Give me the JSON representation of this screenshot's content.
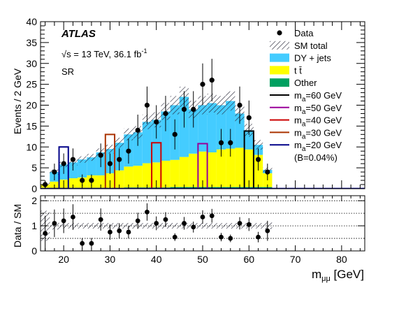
{
  "chart_data": [
    {
      "type": "bar",
      "panel": "main",
      "title": "",
      "annotations": {
        "experiment": "ATLAS",
        "energy": "√s = 13 TeV,   36.1  fb",
        "lumi_exp": "-1",
        "region": "SR",
        "mass_label": "m",
        "mass_sub": "a",
        "signal_note": "(B=0.04%)"
      },
      "xlabel": "m",
      "xlabel_sub": "μμ",
      "xlabel_unit": " [GeV]",
      "ylabel": "Events / 2 GeV",
      "xlim": [
        15,
        85
      ],
      "ylim": [
        0,
        40
      ],
      "x_ticks": [
        20,
        30,
        40,
        50,
        60,
        70,
        80
      ],
      "x_tick_labels": [
        "20",
        "30",
        "40",
        "50",
        "60",
        "70",
        "80"
      ],
      "y_ticks": [
        0,
        5,
        10,
        15,
        20,
        25,
        30,
        35,
        40
      ],
      "y_tick_labels": [
        "0",
        "5",
        "10",
        "15",
        "20",
        "25",
        "30",
        "35",
        "40"
      ],
      "legend_position": "top-right",
      "bin_edges": [
        15,
        17,
        19,
        21,
        23,
        25,
        27,
        29,
        31,
        33,
        35,
        37,
        39,
        41,
        43,
        45,
        47,
        49,
        51,
        53,
        55,
        57,
        59,
        61,
        63,
        65
      ],
      "stack": [
        {
          "name": "Other",
          "color": "#00a060",
          "values": [
            0.2,
            0.2,
            0.2,
            0.2,
            0.2,
            0.2,
            0.2,
            0.2,
            0.2,
            0.3,
            0.3,
            0.3,
            0.3,
            0.3,
            0.4,
            0.4,
            0.4,
            0.4,
            0.4,
            0.4,
            0.4,
            0.4,
            0.4,
            0.4,
            0.4
          ]
        },
        {
          "name": "t t̄",
          "color": "#ffff00",
          "values": [
            0.8,
            1.5,
            2.0,
            2.3,
            2.5,
            3.0,
            3.0,
            3.5,
            4.2,
            5.0,
            5.2,
            5.8,
            6.0,
            6.4,
            6.5,
            7.2,
            8.0,
            8.5,
            8.3,
            9.0,
            9.2,
            9.4,
            9.0,
            7.7,
            3.3
          ]
        },
        {
          "name": "DY + jets",
          "color": "#44ccff",
          "values": [
            0.0,
            2.3,
            3.6,
            3.8,
            4.3,
            4.3,
            5.5,
            5.8,
            6.6,
            7.7,
            8.0,
            9.9,
            10.2,
            11.8,
            13.1,
            14.4,
            10.6,
            11.1,
            11.8,
            10.6,
            11.4,
            8.2,
            4.6,
            2.4,
            0.8
          ]
        }
      ],
      "sm_total_label": "SM total",
      "data": {
        "name": "Data",
        "x": [
          16,
          18,
          20,
          22,
          24,
          26,
          28,
          30,
          32,
          34,
          36,
          38,
          40,
          42,
          44,
          46,
          48,
          50,
          52,
          54,
          56,
          58,
          60,
          62,
          64
        ],
        "y": [
          1,
          4,
          6,
          7,
          2,
          2,
          8,
          6,
          7,
          9,
          14,
          20,
          16,
          18,
          13,
          19,
          19,
          25,
          26,
          11,
          11,
          20,
          17,
          7,
          4
        ]
      },
      "signals": [
        {
          "name": "=60 GeV",
          "color": "#000000",
          "mass": 60,
          "height": 13.8
        },
        {
          "name": "=50 GeV",
          "color": "#990099",
          "mass": 50,
          "height": 10.8
        },
        {
          "name": "=40 GeV",
          "color": "#cc0000",
          "mass": 40,
          "height": 11.0
        },
        {
          "name": "=30 GeV",
          "color": "#aa3300",
          "mass": 30,
          "height": 13.0
        },
        {
          "name": "=20 GeV",
          "color": "#000088",
          "mass": 20,
          "height": 10.0
        }
      ]
    },
    {
      "type": "scatter",
      "panel": "ratio",
      "ylabel": "Data / SM",
      "xlim": [
        15,
        85
      ],
      "ylim": [
        0,
        2.2
      ],
      "y_ticks": [
        0,
        1,
        2
      ],
      "y_tick_labels": [
        "0",
        "1",
        "2"
      ],
      "reference_lines": [
        0.5,
        1,
        1.5,
        2
      ],
      "x": [
        16,
        18,
        20,
        22,
        24,
        26,
        28,
        30,
        32,
        34,
        36,
        38,
        40,
        42,
        44,
        46,
        48,
        50,
        52,
        54,
        56,
        58,
        60,
        62,
        64
      ],
      "y": [
        0.7,
        1.1,
        1.2,
        1.35,
        0.3,
        0.3,
        1.25,
        0.75,
        0.8,
        0.75,
        1.2,
        1.55,
        1.1,
        1.25,
        0.55,
        1.1,
        0.95,
        1.35,
        1.4,
        0.55,
        0.5,
        1.1,
        1.05,
        0.55,
        0.8
      ]
    }
  ]
}
